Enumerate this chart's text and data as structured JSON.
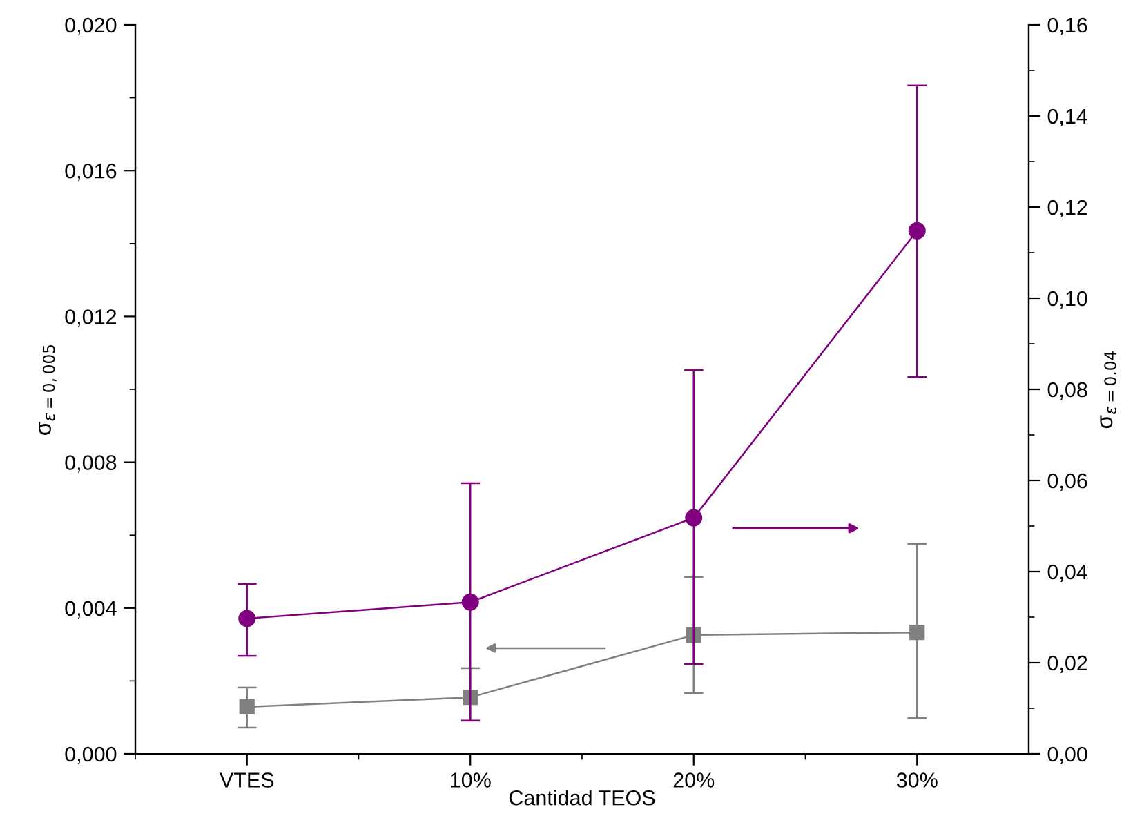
{
  "chart_data": {
    "type": "line",
    "xlabel": "Cantidad TEOS",
    "ylabel": "σ$_{ε=0,005}$",
    "y2label": "σ$_{ε=0.04}$",
    "categories": [
      "VTES",
      "10%",
      "20%",
      "30%"
    ],
    "series": [
      {
        "color": "#808080",
        "marker": "square",
        "values": [
          0.00129,
          0.00155,
          0.00326,
          0.00333
        ],
        "errors": [
          [
            0.00072,
            0.00182
          ],
          [
            0.00091,
            0.00235
          ],
          [
            0.00167,
            0.00485
          ],
          [
            0.00098,
            0.00576
          ]
        ]
      },
      {
        "color": "#800080",
        "marker": "circle",
        "axis": "y2",
        "values": [
          0.0297,
          0.0333,
          0.0518,
          0.1148
        ],
        "errors": [
          [
            0.0215,
            0.0373
          ],
          [
            0.0073,
            0.0594
          ],
          [
            0.0197,
            0.0842
          ],
          [
            0.0827,
            0.1467
          ]
        ]
      }
    ],
    "ylim": [
      0,
      0.02
    ],
    "yticks": [
      {
        "value": 0,
        "label": "0,000"
      },
      {
        "value": 0.004,
        "label": "0,004"
      },
      {
        "value": 0.008,
        "label": "0,008"
      },
      {
        "value": 0.012,
        "label": "0,012"
      },
      {
        "value": 0.016,
        "label": "0,016"
      },
      {
        "value": 0.02,
        "label": "0,020"
      }
    ],
    "y2lim": [
      0,
      0.16
    ],
    "y2ticks": [
      {
        "value": 0,
        "label": "0,00"
      },
      {
        "value": 0.02,
        "label": "0,02"
      },
      {
        "value": 0.04,
        "label": "0,04"
      },
      {
        "value": 0.06,
        "label": "0,06"
      },
      {
        "value": 0.08,
        "label": "0,08"
      },
      {
        "value": 0.1,
        "label": "0,10"
      },
      {
        "value": 0.12,
        "label": "0,12"
      },
      {
        "value": 0.14,
        "label": "0,14"
      },
      {
        "value": 0.16,
        "label": "0,16"
      }
    ],
    "grid": false,
    "legend": false,
    "line_style": "solid"
  }
}
